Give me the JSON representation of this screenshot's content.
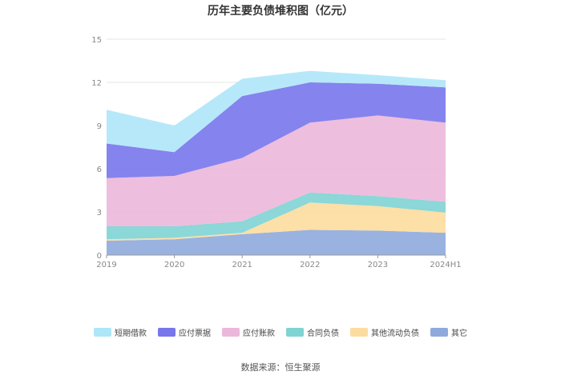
{
  "title": "历年主要负债堆积图（亿元）",
  "source": "数据来源：恒生聚源",
  "chart_data": {
    "type": "area",
    "stacked": true,
    "categories": [
      "2019",
      "2020",
      "2021",
      "2022",
      "2023",
      "2024H1"
    ],
    "y_ticks": [
      "0",
      "3",
      "6",
      "9",
      "12",
      "15"
    ],
    "ylim": [
      0,
      15
    ],
    "grid": true,
    "legend_position": "bottom",
    "series": [
      {
        "name": "其它",
        "color": "#8eaadc",
        "values": [
          1.0,
          1.1,
          1.45,
          1.75,
          1.7,
          1.55
        ]
      },
      {
        "name": "其他流动负债",
        "color": "#fddc9f",
        "values": [
          0.1,
          0.1,
          0.1,
          1.9,
          1.7,
          1.4
        ]
      },
      {
        "name": "合同负债",
        "color": "#7fd3d3",
        "values": [
          0.9,
          0.8,
          0.8,
          0.7,
          0.7,
          0.75
        ]
      },
      {
        "name": "应付账款",
        "color": "#ecb7da",
        "values": [
          3.35,
          3.5,
          4.4,
          4.85,
          5.6,
          5.5
        ]
      },
      {
        "name": "应付票据",
        "color": "#7876ec",
        "values": [
          2.4,
          1.65,
          4.3,
          2.8,
          2.2,
          2.45
        ]
      },
      {
        "name": "短期借款",
        "color": "#aee6f9",
        "values": [
          2.35,
          1.85,
          1.2,
          0.8,
          0.6,
          0.5
        ]
      }
    ],
    "legend_order": [
      "短期借款",
      "应付票据",
      "应付账款",
      "合同负债",
      "其他流动负债",
      "其它"
    ]
  }
}
